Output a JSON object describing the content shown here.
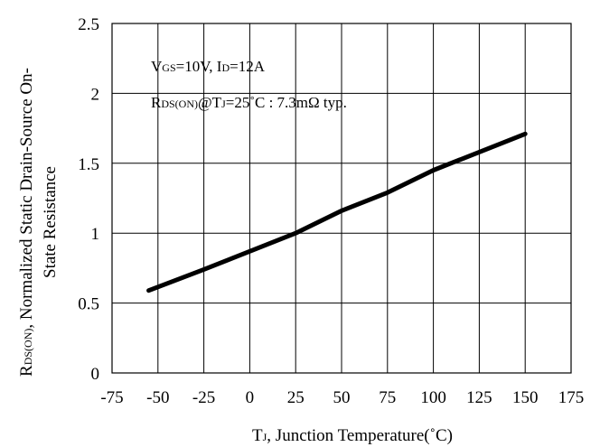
{
  "chart_data": {
    "type": "line",
    "xlabel": {
      "main": "T",
      "sub": "J",
      "rest": ", Junction Temperature(˚C)"
    },
    "ylabel": {
      "line1": {
        "main": "R",
        "sub": "DS(ON)",
        "rest": ", Normalized Static Drain-Source On-"
      },
      "line2": "State Resistance"
    },
    "xlim": [
      -75,
      175
    ],
    "ylim": [
      0,
      2.5
    ],
    "xticks": [
      "-75",
      "-50",
      "-25",
      "0",
      "25",
      "50",
      "75",
      "100",
      "125",
      "150",
      "175"
    ],
    "yticks": [
      "0",
      "0.5",
      "1",
      "1.5",
      "2",
      "2.5"
    ],
    "grid": true,
    "annotations": {
      "line1": {
        "p1": "V",
        "s1": "GS",
        "p2": "=10V, I",
        "s2": "D",
        "p3": "=12A"
      },
      "line2": {
        "p1": "R",
        "s1": "DS(ON)",
        "p2": "@T",
        "s2": "J",
        "p3": "=25˚C : 7.3mΩ  typ."
      }
    },
    "series": [
      {
        "x": [
          -55,
          -25,
          0,
          25,
          50,
          75,
          100,
          125,
          150
        ],
        "y": [
          0.59,
          0.74,
          0.87,
          1.0,
          1.16,
          1.29,
          1.45,
          1.58,
          1.71
        ]
      }
    ],
    "line_color": "#000000"
  }
}
